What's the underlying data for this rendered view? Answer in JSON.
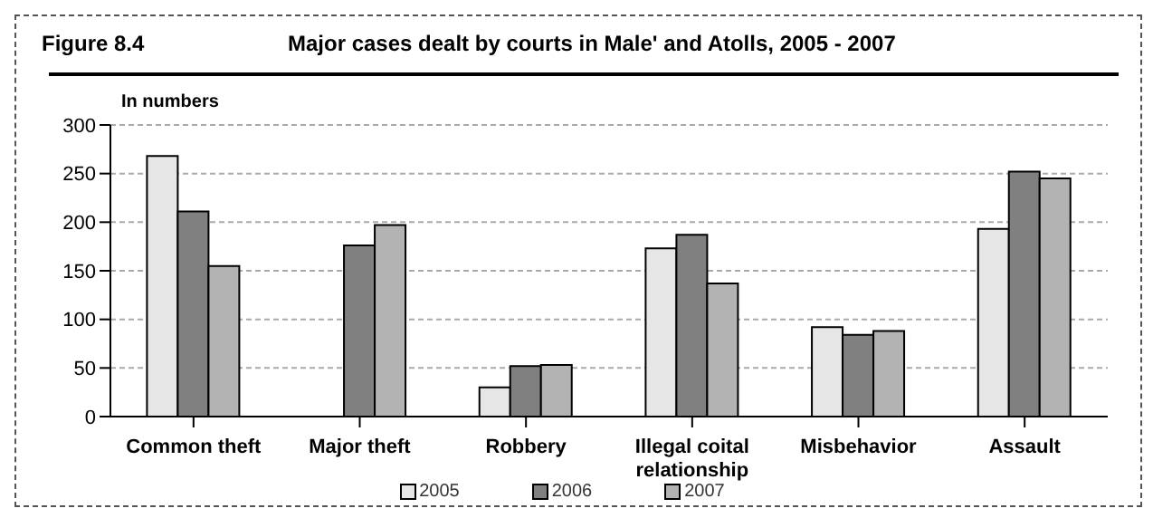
{
  "chart_data": {
    "type": "bar",
    "title": "Major cases dealt by courts in Male' and Atolls, 2005 - 2007",
    "annotations": [
      "Figure 8.4"
    ],
    "ylabel": "In numbers",
    "categories": [
      "Common theft",
      "Major theft",
      "Robbery",
      "Illegal coital relationship",
      "Misbehavior",
      "Assault"
    ],
    "series": [
      {
        "name": "2005",
        "color": "#e6e6e6",
        "values": [
          268,
          null,
          30,
          173,
          92,
          193
        ]
      },
      {
        "name": "2006",
        "color": "#808080",
        "values": [
          211,
          176,
          52,
          187,
          84,
          252
        ]
      },
      {
        "name": "2007",
        "color": "#b3b3b3",
        "values": [
          155,
          197,
          53,
          137,
          88,
          245
        ]
      }
    ],
    "ylim": [
      0,
      300
    ],
    "yticks": [
      0,
      50,
      100,
      150,
      200,
      250,
      300
    ],
    "grid": "y",
    "legend": "bottom"
  }
}
